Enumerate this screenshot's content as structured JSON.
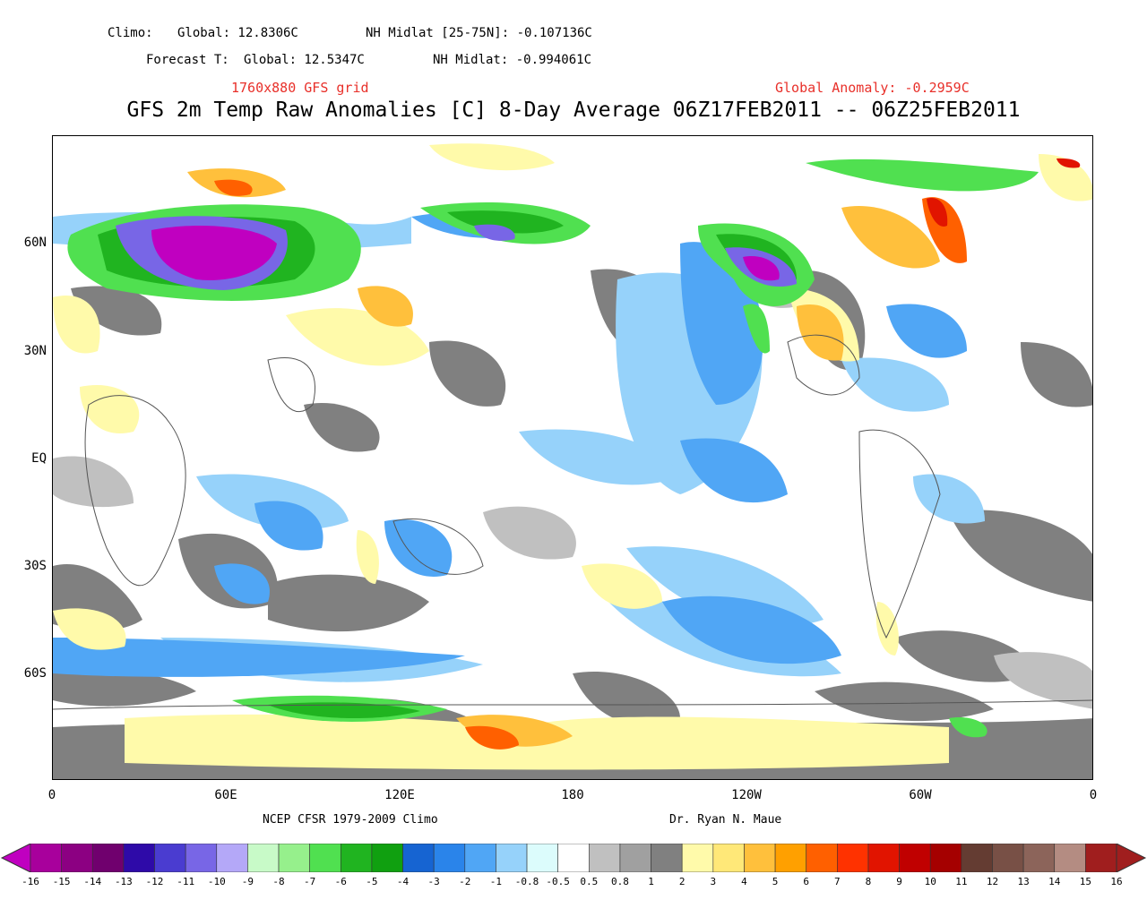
{
  "header": {
    "climo_label": "Climo:",
    "climo_global": "Global: 12.8306C",
    "climo_nh": "NH Midlat [25-75N]: -0.107136C",
    "forecast_label": "Forecast T:",
    "forecast_global": "Global: 12.5347C",
    "forecast_nh": "NH Midlat: -0.994061C",
    "grid_note": "1760x880 GFS grid",
    "global_anomaly": "Global Anomaly: -0.2959C",
    "title": "GFS 2m Temp Raw Anomalies [C] 8-Day Average 06Z17FEB2011 -- 06Z25FEB2011"
  },
  "axes": {
    "lat_labels": [
      "60N",
      "30N",
      "EQ",
      "30S",
      "60S"
    ],
    "lon_labels": [
      "0",
      "60E",
      "120E",
      "180",
      "120W",
      "60W",
      "0"
    ]
  },
  "credits": {
    "left": "NCEP CFSR 1979-2009 Climo",
    "right": "Dr. Ryan N. Maue"
  },
  "colorbar": {
    "labels": [
      "-16",
      "-15",
      "-14",
      "-13",
      "-12",
      "-11",
      "-10",
      "-9",
      "-8",
      "-7",
      "-6",
      "-5",
      "-4",
      "-3",
      "-2",
      "-1",
      "-0.8",
      "-0.5",
      "0.5",
      "0.8",
      "1",
      "2",
      "3",
      "4",
      "5",
      "6",
      "7",
      "8",
      "9",
      "10",
      "11",
      "12",
      "13",
      "14",
      "15",
      "16"
    ],
    "colors": [
      "#c000c0",
      "#a8009c",
      "#8c0082",
      "#70006e",
      "#2e0aa8",
      "#4a3cd0",
      "#7866e6",
      "#b4a8f8",
      "#c8fac8",
      "#96f08c",
      "#50e050",
      "#20b420",
      "#10a010",
      "#1664d2",
      "#2a84ea",
      "#50a6f5",
      "#96d2fa",
      "#dcfcfc",
      "#ffffff",
      "#c0c0c0",
      "#a0a0a0",
      "#808080",
      "#fffaaa",
      "#ffe878",
      "#ffc03c",
      "#ffa000",
      "#ff6000",
      "#ff3200",
      "#e11400",
      "#c00000",
      "#a50000",
      "#643c32",
      "#785046",
      "#8c645a",
      "#b48c82",
      "#a01e1e"
    ]
  },
  "map_colors": {
    "gray": "#808080",
    "lightgray": "#c0c0c0",
    "lightblue": "#96d2fa",
    "blue": "#50a6f5",
    "darkblue": "#2a84ea",
    "green": "#50e050",
    "darkgreen": "#20b420",
    "purple": "#7866e6",
    "magenta": "#c000c0",
    "yellow": "#fffaaa",
    "lightorange": "#ffe878",
    "orange": "#ffc03c",
    "darkorange": "#ff6000",
    "red": "#e11400"
  }
}
